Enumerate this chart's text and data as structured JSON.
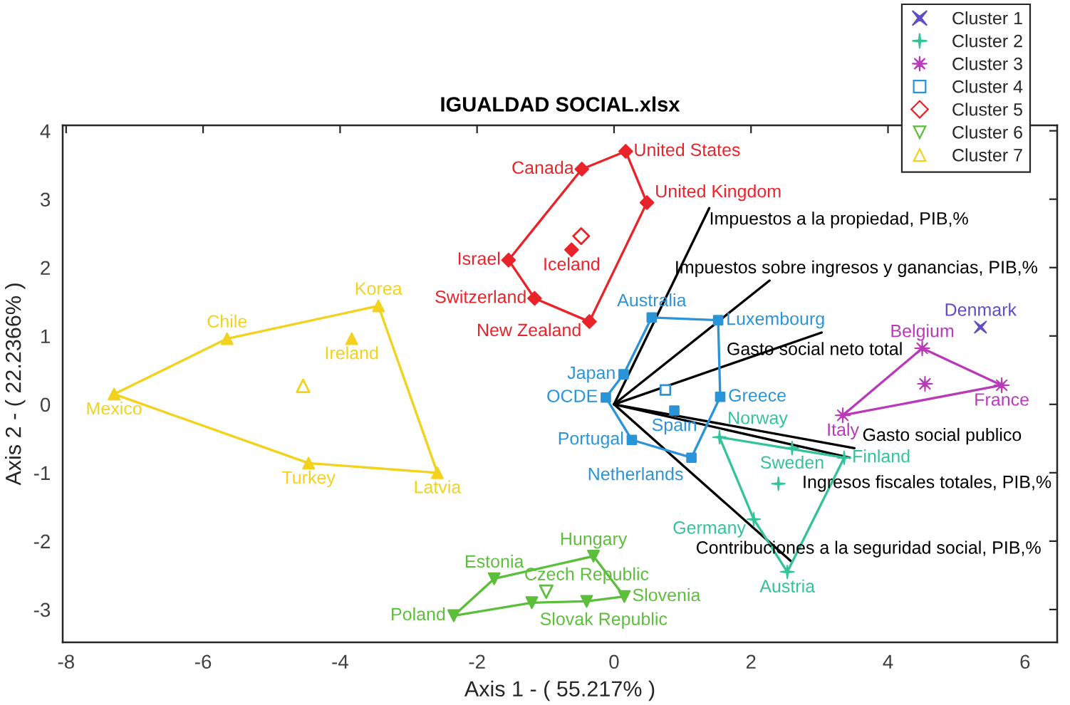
{
  "chart_data": {
    "type": "scatter",
    "title": "IGUALDAD SOCIAL.xlsx",
    "xlabel": "Axis 1 - ( 55.217% )",
    "ylabel": "Axis 2 - ( 22.2366% )",
    "xlim": [
      -8.05,
      6.47
    ],
    "ylim": [
      -3.48,
      4.08
    ],
    "xticks": [
      -8,
      -6,
      -4,
      -2,
      0,
      2,
      4,
      6
    ],
    "yticks": [
      -3,
      -2,
      -1,
      0,
      1,
      2,
      3,
      4
    ],
    "legend": "top right",
    "series": [
      {
        "name": "Cluster 1",
        "color": "#5e4fc4",
        "marker": "x",
        "x": [
          5.35
        ],
        "values": [
          1.13
        ],
        "value_labels": [
          "Denmark"
        ]
      },
      {
        "type": "line",
        "color": "#33c29a",
        "x": [
          1.54,
          3.36,
          2.53,
          2.04,
          1.54,
          3.36
        ],
        "values": [
          -0.48,
          -0.78,
          -2.45,
          -1.68,
          -0.48,
          -0.78
        ]
      },
      {
        "color": "#33c29a",
        "marker": "cross",
        "x": [
          1.54,
          2.6,
          3.36,
          2.04,
          2.53
        ],
        "values": [
          -0.48,
          -0.64,
          -0.78,
          -1.68,
          -2.45
        ],
        "value_labels": [
          "Norway",
          "Sweden",
          "Finland",
          "Germany",
          "Austria"
        ]
      },
      {
        "name": "Cluster 2",
        "color": "#33c29a",
        "marker": "cross",
        "x": [
          2.4
        ],
        "values": [
          -1.16
        ]
      },
      {
        "type": "line",
        "color": "#b83ab8",
        "x": [
          3.34,
          4.5,
          5.66,
          3.34,
          4.5
        ],
        "values": [
          -0.16,
          0.82,
          0.28,
          -0.16,
          0.82
        ]
      },
      {
        "color": "#b83ab8",
        "marker": "star",
        "x": [
          4.5,
          5.66,
          3.34
        ],
        "values": [
          0.82,
          0.28,
          -0.16
        ],
        "value_labels": [
          "Belgium",
          "France",
          "Italy"
        ]
      },
      {
        "name": "Cluster 3",
        "color": "#b83ab8",
        "marker": "star",
        "x": [
          4.54
        ],
        "values": [
          0.3
        ]
      },
      {
        "type": "line",
        "color": "#2b94d8",
        "x": [
          -0.12,
          0.14,
          0.55,
          1.52,
          1.55,
          1.13,
          0.26,
          -0.12,
          0.14
        ],
        "values": [
          0.1,
          0.44,
          1.27,
          1.23,
          0.11,
          -0.78,
          -0.52,
          0.1,
          0.44
        ]
      },
      {
        "color": "#2b94d8",
        "marker": "square",
        "x": [
          0.55,
          1.52,
          0.14,
          -0.12,
          1.55,
          0.88,
          0.26,
          1.13
        ],
        "values": [
          1.27,
          1.23,
          0.44,
          0.1,
          0.11,
          -0.09,
          -0.52,
          -0.78
        ],
        "value_labels": [
          "Australia",
          "Luxembourg",
          "Japan",
          "OCDE",
          "Greece",
          "Spain",
          "Portugal",
          "Netherlands"
        ]
      },
      {
        "name": "Cluster 4",
        "color": "#2b94d8",
        "marker": "square",
        "x": [
          0.75
        ],
        "values": [
          0.21
        ]
      },
      {
        "type": "line",
        "color": "#e8242a",
        "x": [
          -1.54,
          -0.47,
          0.17,
          0.48,
          -0.36,
          -1.16,
          -1.54,
          -0.47
        ],
        "values": [
          2.11,
          3.44,
          3.7,
          2.95,
          1.21,
          1.55,
          2.11,
          3.44
        ]
      },
      {
        "color": "#e8242a",
        "marker": "diamond",
        "x": [
          -0.47,
          0.17,
          0.48,
          -0.62,
          -1.54,
          -1.16,
          -0.36
        ],
        "values": [
          3.44,
          3.7,
          2.95,
          2.26,
          2.11,
          1.55,
          1.21
        ],
        "value_labels": [
          "Canada",
          "United States",
          "United Kingdom",
          "Iceland",
          "Israel",
          "Switzerland",
          "New Zealand"
        ]
      },
      {
        "name": "Cluster 5",
        "color": "#e8242a",
        "marker": "diamond",
        "x": [
          -0.48
        ],
        "values": [
          2.46
        ]
      },
      {
        "type": "line",
        "color": "#5cbe3a",
        "x": [
          -2.34,
          -1.75,
          -0.3,
          0.15,
          -0.4,
          -1.2,
          -2.34,
          -1.75
        ],
        "values": [
          -3.09,
          -2.55,
          -2.22,
          -2.81,
          -2.88,
          -2.9,
          -3.09,
          -2.55
        ]
      },
      {
        "color": "#5cbe3a",
        "marker": "triangle_down",
        "x": [
          -1.75,
          -2.34,
          -1.2,
          -0.4,
          -0.3,
          0.15
        ],
        "values": [
          -2.55,
          -3.09,
          -2.9,
          -2.88,
          -2.22,
          -2.81
        ],
        "value_labels": [
          "Estonia",
          "Poland",
          "Slovak Republic",
          "Czech Republic",
          "Hungary",
          "Slovenia"
        ]
      },
      {
        "name": "Cluster 6",
        "color": "#5cbe3a",
        "marker": "triangle_down",
        "x": [
          -0.99
        ],
        "values": [
          -2.74
        ]
      },
      {
        "type": "line",
        "color": "#f2d21c",
        "x": [
          -7.3,
          -5.65,
          -3.44,
          -2.58,
          -4.46,
          -7.3,
          -5.65
        ],
        "values": [
          0.15,
          0.96,
          1.44,
          -1.0,
          -0.86,
          0.15,
          0.96
        ]
      },
      {
        "color": "#f2d21c",
        "marker": "triangle",
        "x": [
          -7.3,
          -5.65,
          -3.44,
          -3.83,
          -4.46,
          -2.58
        ],
        "values": [
          0.15,
          0.96,
          1.44,
          0.96,
          -0.86,
          -1.0
        ],
        "value_labels": [
          "Mexico",
          "Chile",
          "Korea",
          "Ireland",
          "Turkey",
          "Latvia"
        ]
      },
      {
        "name": "Cluster 7",
        "color": "#f2d21c",
        "marker": "triangle",
        "x": [
          -4.54
        ],
        "values": [
          0.27
        ]
      },
      {
        "type": "line",
        "name": "Impuestos a la propiedad, PIB,%",
        "color": "#000000",
        "x": [
          0,
          1.39
        ],
        "values": [
          0,
          2.87
        ]
      },
      {
        "type": "line",
        "name": "Impuestos sobre ingresos y ganancias, PIB,%",
        "color": "#000000",
        "x": [
          0,
          2.27
        ],
        "values": [
          0,
          1.81
        ]
      },
      {
        "type": "line",
        "name": "Gasto social neto total",
        "color": "#000000",
        "x": [
          0,
          3.03
        ],
        "values": [
          0,
          1.05
        ]
      },
      {
        "type": "line",
        "name": "Gasto social publico",
        "color": "#000000",
        "x": [
          0,
          3.51
        ],
        "values": [
          0,
          -0.64
        ]
      },
      {
        "type": "line",
        "name": "Ingresos fiscales totales, PIB,%",
        "color": "#000000",
        "x": [
          0,
          3.44
        ],
        "values": [
          0,
          -0.78
        ]
      },
      {
        "type": "line",
        "name": "Contribuciones a la seguridad social, PIB,%",
        "color": "#000000",
        "x": [
          0,
          2.58
        ],
        "values": [
          0,
          -2.29
        ]
      }
    ]
  }
}
